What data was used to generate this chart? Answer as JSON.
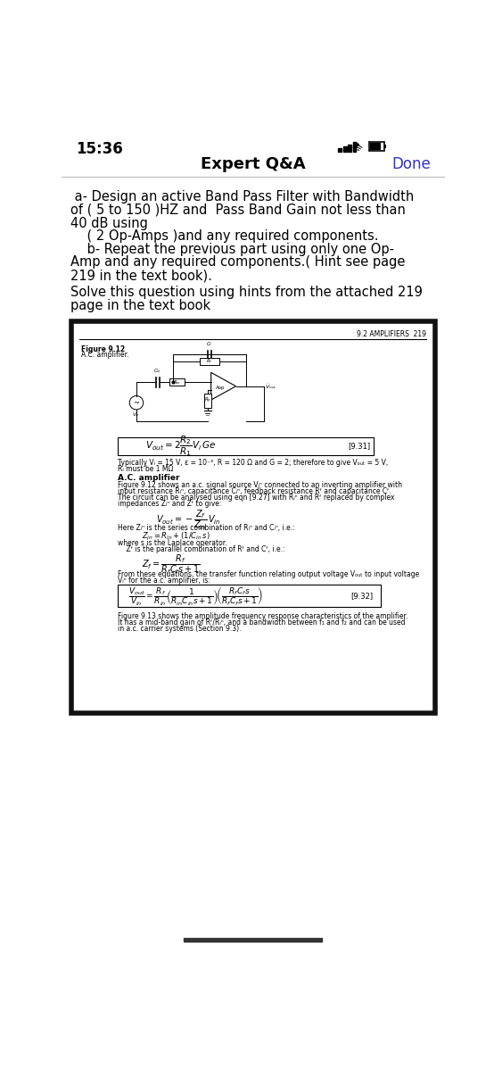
{
  "bg_color": "#ffffff",
  "status_bar_time": "15:36",
  "header_title": "Expert Q&A",
  "header_done": "Done",
  "header_done_color": "#3333cc",
  "question_lines": [
    " a- Design an active Band Pass Filter with Bandwidth",
    "of ( 5 to 150 )HZ and  Pass Band Gain not less than",
    "40 dB using",
    "    ( 2 Op-Amps )and any required components.",
    "    b- Repeat the previous part using only one Op-",
    "Amp and any required components.( Hint see page",
    "219 in the text book)."
  ],
  "solve_lines": [
    "Solve this question using hints from the attached 219",
    "page in the text book"
  ],
  "textbook_header": "9.2 AMPLIFIERS  219",
  "figure_label_line1": "Figure 9.12",
  "figure_label_line2": "A.C. amplifier.",
  "eq931_ref": "[9.31]",
  "typically_line1": "Typically Vᵢ = 15 V, ε = 10⁻³, R = 120 Ω and G = 2; therefore to give Vₒᵤₜ = 5 V,",
  "typically_line2": "Rᵢ must be 1 MΩ",
  "ac_title": "A.C. amplifier",
  "ac_body_lines": [
    "Figure 9.12 shows an a.c. signal source Vᵢⁿ connected to an inverting amplifier with",
    "input resistance Rᵢⁿ, capacitance Cᵢⁿ, feedback resistance Rᶠ and capacitance Cᶠ.",
    "The circuit can be analysed using eqn [9.27] with Rᵢⁿ and Rᶠ replaced by complex",
    "impedances Zᵢⁿ and Zᶠ to give:"
  ],
  "here_z_line": "Here Zᵢⁿ is the series combination of Rᵢⁿ and Cᵢⁿ, i.e.:",
  "zin_line": "Zᵢⁿ = Rᵢⁿ + (1/Cᵢⁿ s)",
  "where_s_line1": "where s is the Laplace operator.",
  "where_s_line2": "    Zᶠ is the parallel combination of Rᶠ and Cᶠ, i.e.:",
  "from_lines": [
    "From these equations, the transfer function relating output voltage Vₒᵤₜ to input voltage",
    "Vᵢⁿ for the a.c. amplifier, is:"
  ],
  "eq932_ref": "[9.32]",
  "fig913_lines": [
    "Figure 9.13 shows the amplitude frequency response characteristics of the amplifier.",
    "It has a mid-band gain of Rᶠ/Rᵢⁿ, and a bandwidth between f₁ and f₂ and can be used",
    "in a.c. carrier systems (Section 9.3)."
  ]
}
